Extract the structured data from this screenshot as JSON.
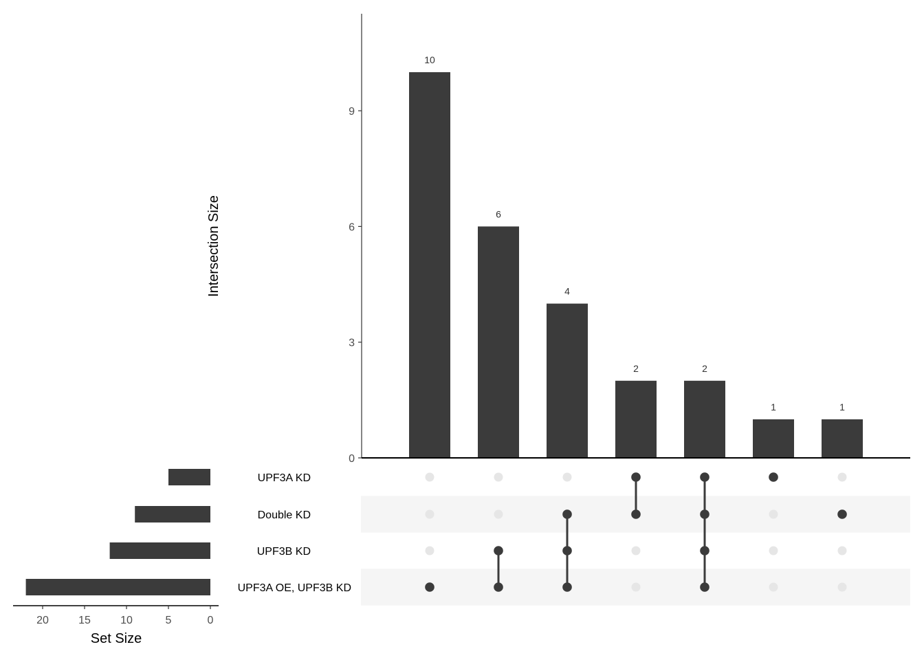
{
  "chart_data": {
    "type": "upset",
    "title": "",
    "colors": {
      "bar": "#3b3b3b",
      "dot_active": "#3b3b3b",
      "dot_inactive": "#e6e6e6",
      "stripe": "#f5f5f5",
      "axis": "#000000"
    },
    "intersection_bars": {
      "ylabel": "Intersection Size",
      "ylim": [
        0,
        11.5
      ],
      "yticks": [
        0,
        3,
        6,
        9
      ],
      "values": [
        10,
        6,
        4,
        2,
        2,
        1,
        1
      ]
    },
    "sets": [
      "UPF3A KD",
      "Double KD",
      "UPF3B KD",
      "UPF3A OE, UPF3B KD"
    ],
    "set_sizes": {
      "xlabel": "Set Size",
      "values": [
        5,
        9,
        12,
        22
      ],
      "xticks": [
        20,
        15,
        10,
        5,
        0
      ],
      "xlim": [
        23,
        0
      ]
    },
    "intersections": [
      {
        "members": [
          "UPF3A OE, UPF3B KD"
        ],
        "size": 10
      },
      {
        "members": [
          "UPF3B KD",
          "UPF3A OE, UPF3B KD"
        ],
        "size": 6
      },
      {
        "members": [
          "Double KD",
          "UPF3B KD",
          "UPF3A OE, UPF3B KD"
        ],
        "size": 4
      },
      {
        "members": [
          "UPF3A KD",
          "Double KD"
        ],
        "size": 2
      },
      {
        "members": [
          "UPF3A KD",
          "Double KD",
          "UPF3B KD",
          "UPF3A OE, UPF3B KD"
        ],
        "size": 2
      },
      {
        "members": [
          "UPF3A KD"
        ],
        "size": 1
      },
      {
        "members": [
          "Double KD"
        ],
        "size": 1
      }
    ]
  }
}
